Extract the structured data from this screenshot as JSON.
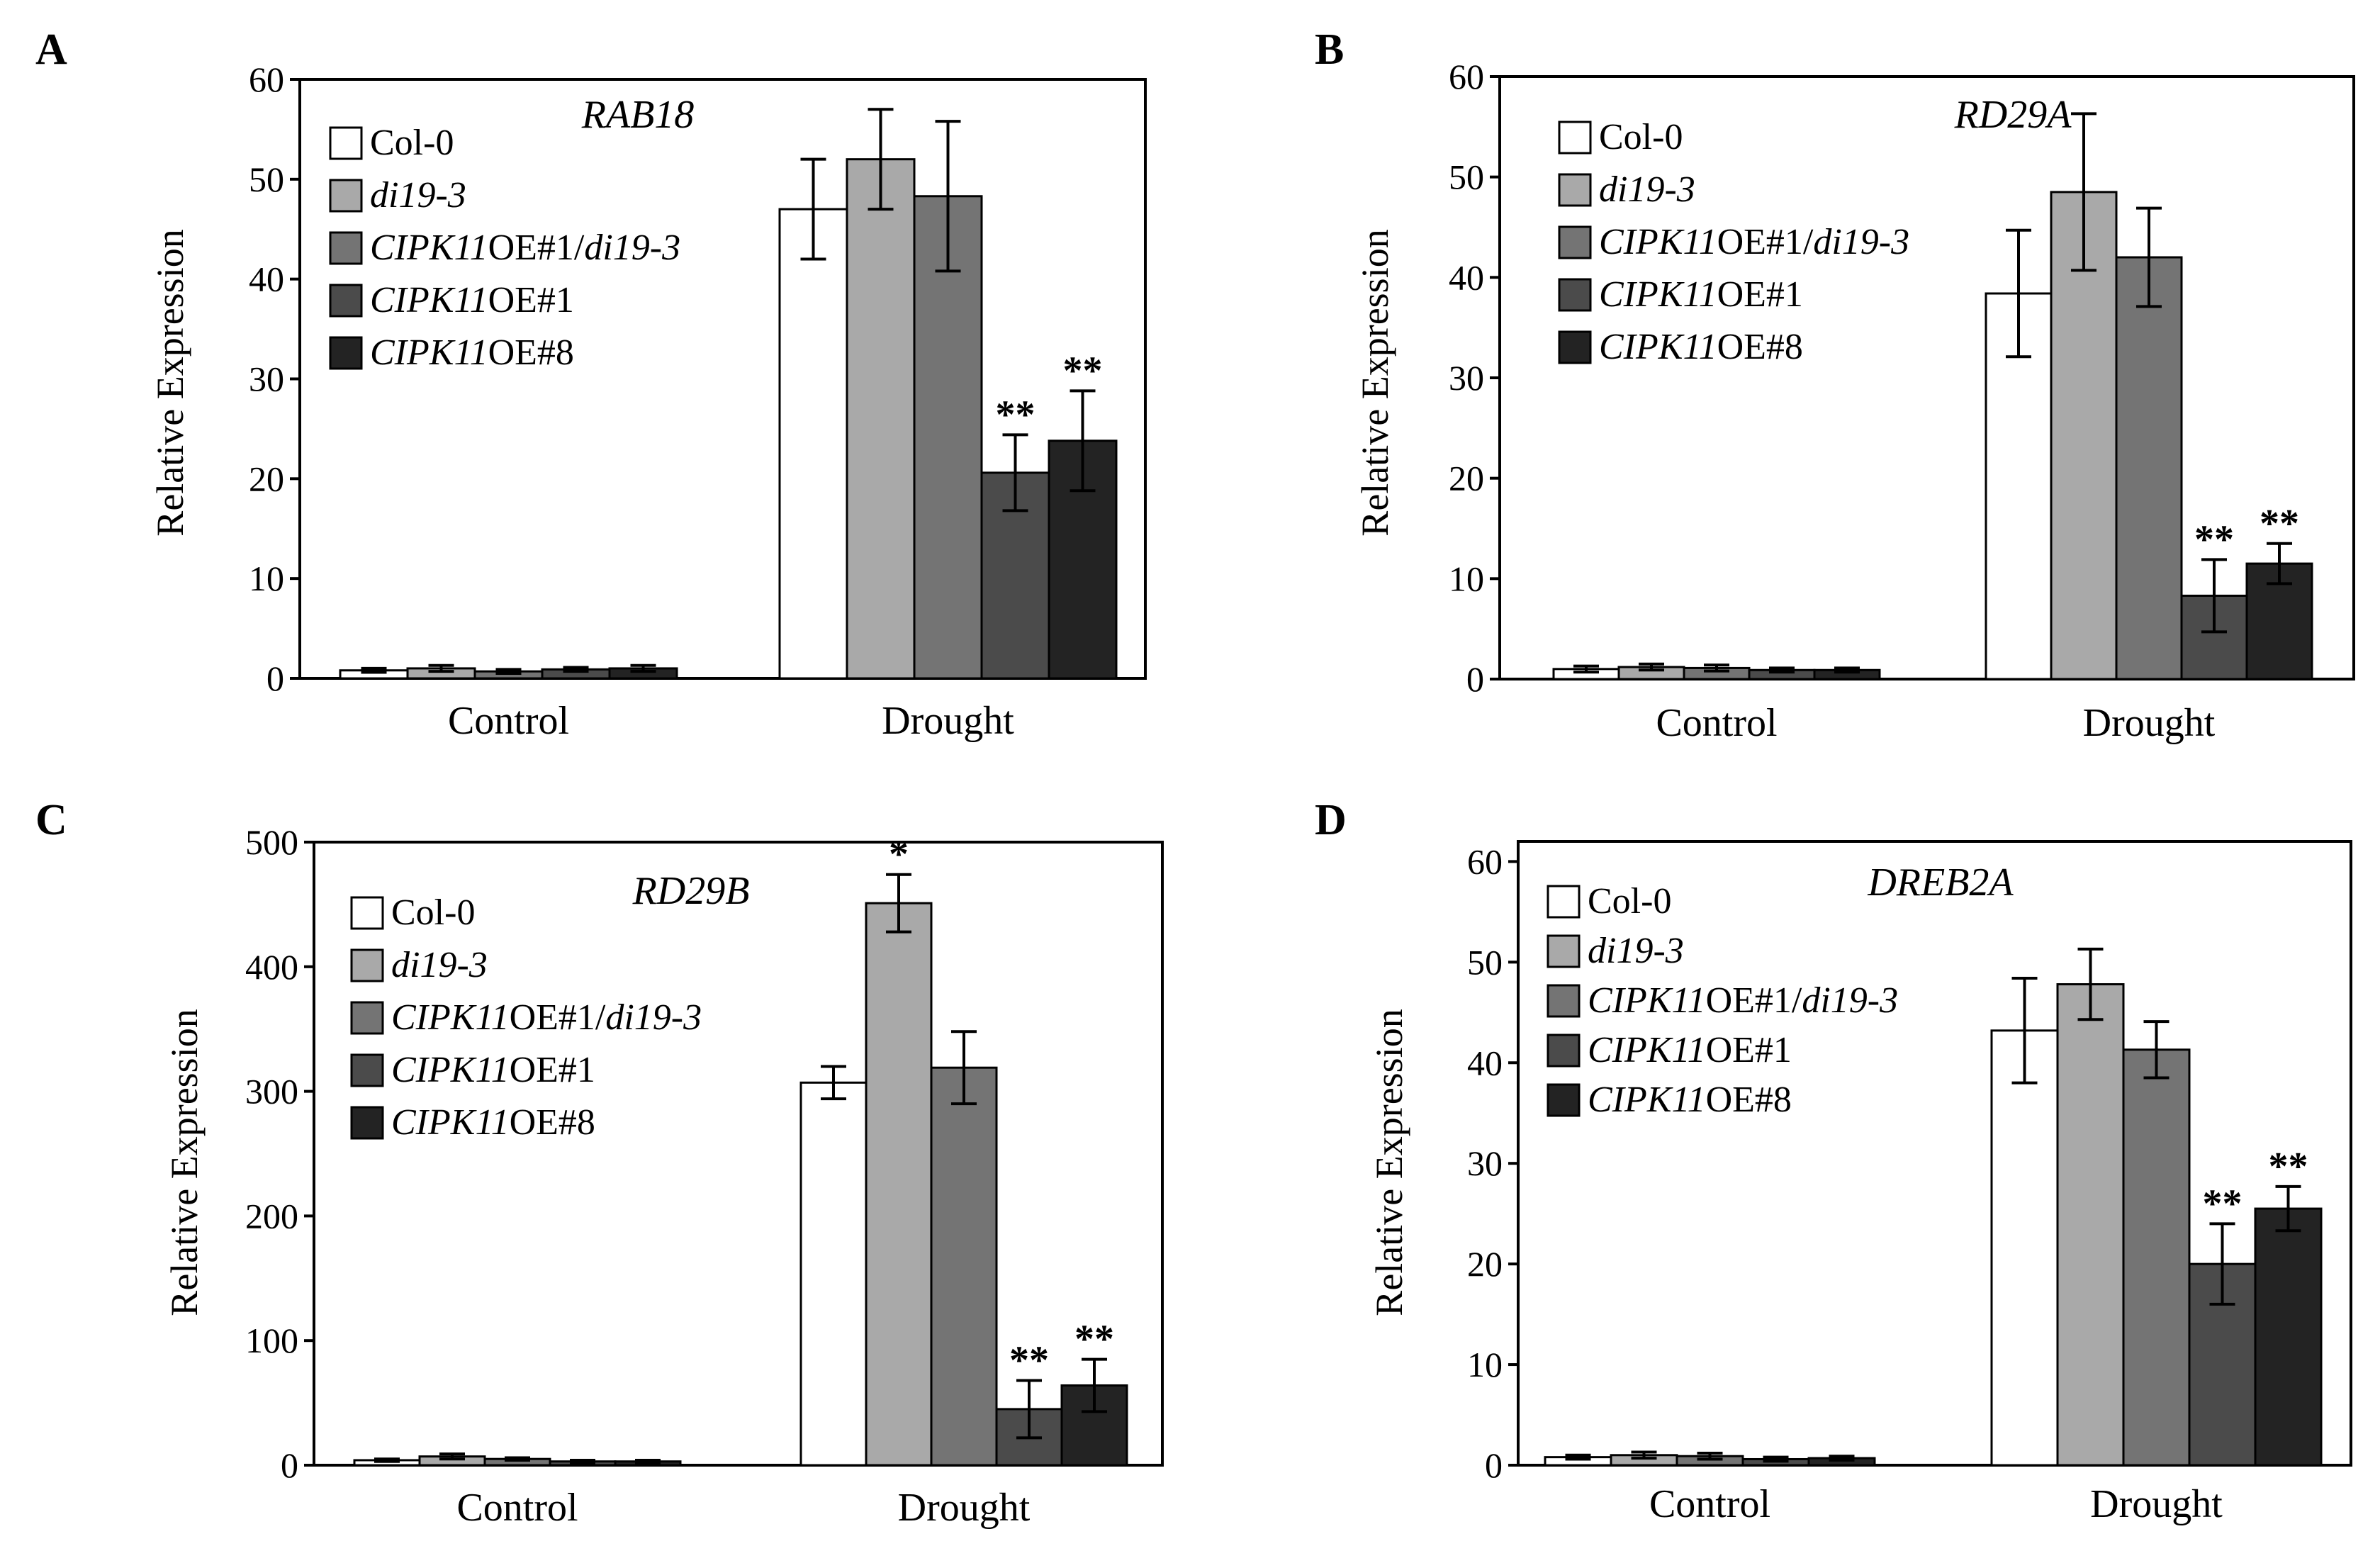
{
  "colors": {
    "Col-0": "#ffffff",
    "di19-3": "#a9a9a9",
    "CIPK11OE#1/di19-3": "#747474",
    "CIPK11OE#1": "#4b4b4b",
    "CIPK11OE#8": "#232323"
  },
  "legend": [
    {
      "key": "Col-0",
      "parts": [
        {
          "t": "Col-0",
          "i": false
        }
      ]
    },
    {
      "key": "di19-3",
      "parts": [
        {
          "t": "di19-3",
          "i": true
        }
      ]
    },
    {
      "key": "CIPK11OE#1/di19-3",
      "parts": [
        {
          "t": "CIPK11",
          "i": true
        },
        {
          "t": "OE#1/",
          "i": false
        },
        {
          "t": "di19-3",
          "i": true
        }
      ]
    },
    {
      "key": "CIPK11OE#1",
      "parts": [
        {
          "t": "CIPK11",
          "i": true
        },
        {
          "t": "OE#1",
          "i": false
        }
      ]
    },
    {
      "key": "CIPK11OE#8",
      "parts": [
        {
          "t": "CIPK11",
          "i": true
        },
        {
          "t": "OE#8",
          "i": false
        }
      ]
    }
  ],
  "chart_data": [
    {
      "panel": "A",
      "type": "bar",
      "title": "RAB18",
      "ylabel": "Relative Expression",
      "xlabel": "",
      "ylim": [
        0,
        60
      ],
      "yticks": [
        0,
        10,
        20,
        30,
        40,
        50,
        60
      ],
      "categories": [
        "Control",
        "Drought"
      ],
      "series": [
        {
          "name": "Col-0",
          "values": [
            0.8,
            47.0
          ],
          "errors": [
            0.2,
            5.0
          ],
          "sig": [
            "",
            ""
          ]
        },
        {
          "name": "di19-3",
          "values": [
            1.0,
            52.0
          ],
          "errors": [
            0.3,
            5.0
          ],
          "sig": [
            "",
            ""
          ]
        },
        {
          "name": "CIPK11OE#1/di19-3",
          "values": [
            0.7,
            48.3
          ],
          "errors": [
            0.2,
            7.5
          ],
          "sig": [
            "",
            ""
          ]
        },
        {
          "name": "CIPK11OE#1",
          "values": [
            0.9,
            20.6
          ],
          "errors": [
            0.2,
            3.8
          ],
          "sig": [
            "",
            "**"
          ]
        },
        {
          "name": "CIPK11OE#8",
          "values": [
            1.0,
            23.8
          ],
          "errors": [
            0.3,
            5.0
          ],
          "sig": [
            "",
            "**"
          ]
        }
      ]
    },
    {
      "panel": "B",
      "type": "bar",
      "title": "RD29A",
      "ylabel": "Relative Expression",
      "xlabel": "",
      "ylim": [
        0,
        60
      ],
      "yticks": [
        0,
        10,
        20,
        30,
        40,
        50,
        60
      ],
      "categories": [
        "Control",
        "Drought"
      ],
      "series": [
        {
          "name": "Col-0",
          "values": [
            1.0,
            38.4
          ],
          "errors": [
            0.3,
            6.3
          ],
          "sig": [
            "",
            ""
          ]
        },
        {
          "name": "di19-3",
          "values": [
            1.2,
            48.5
          ],
          "errors": [
            0.3,
            7.8
          ],
          "sig": [
            "",
            ""
          ]
        },
        {
          "name": "CIPK11OE#1/di19-3",
          "values": [
            1.1,
            42.0
          ],
          "errors": [
            0.3,
            4.9
          ],
          "sig": [
            "",
            ""
          ]
        },
        {
          "name": "CIPK11OE#1",
          "values": [
            0.9,
            8.3
          ],
          "errors": [
            0.2,
            3.6
          ],
          "sig": [
            "",
            "**"
          ]
        },
        {
          "name": "CIPK11OE#8",
          "values": [
            0.9,
            11.5
          ],
          "errors": [
            0.2,
            2.0
          ],
          "sig": [
            "",
            "**"
          ]
        }
      ]
    },
    {
      "panel": "C",
      "type": "bar",
      "title": "RD29B",
      "ylabel": "Relative Expression",
      "xlabel": "",
      "ylim": [
        0,
        500
      ],
      "yticks": [
        0,
        100,
        200,
        300,
        400,
        500
      ],
      "categories": [
        "Control",
        "Drought"
      ],
      "series": [
        {
          "name": "Col-0",
          "values": [
            4,
            307
          ],
          "errors": [
            1,
            13
          ],
          "sig": [
            "",
            ""
          ]
        },
        {
          "name": "di19-3",
          "values": [
            7,
            451
          ],
          "errors": [
            2,
            23
          ],
          "sig": [
            "",
            "*"
          ]
        },
        {
          "name": "CIPK11OE#1/di19-3",
          "values": [
            5,
            319
          ],
          "errors": [
            1,
            29
          ],
          "sig": [
            "",
            ""
          ]
        },
        {
          "name": "CIPK11OE#1",
          "values": [
            3,
            45
          ],
          "errors": [
            1,
            23
          ],
          "sig": [
            "",
            "**"
          ]
        },
        {
          "name": "CIPK11OE#8",
          "values": [
            3,
            64
          ],
          "errors": [
            1,
            21
          ],
          "sig": [
            "",
            "**"
          ]
        }
      ]
    },
    {
      "panel": "D",
      "type": "bar",
      "title": "DREB2A",
      "ylabel": "Relative Expression",
      "xlabel": "",
      "ylim": [
        0,
        62
      ],
      "yticks": [
        0,
        10,
        20,
        30,
        40,
        50,
        60
      ],
      "categories": [
        "Control",
        "Drought"
      ],
      "series": [
        {
          "name": "Col-0",
          "values": [
            0.8,
            43.2
          ],
          "errors": [
            0.2,
            5.2
          ],
          "sig": [
            "",
            ""
          ]
        },
        {
          "name": "di19-3",
          "values": [
            1.0,
            47.8
          ],
          "errors": [
            0.3,
            3.5
          ],
          "sig": [
            "",
            ""
          ]
        },
        {
          "name": "CIPK11OE#1/di19-3",
          "values": [
            0.9,
            41.3
          ],
          "errors": [
            0.3,
            2.8
          ],
          "sig": [
            "",
            ""
          ]
        },
        {
          "name": "CIPK11OE#1",
          "values": [
            0.6,
            20.0
          ],
          "errors": [
            0.2,
            4.0
          ],
          "sig": [
            "",
            "**"
          ]
        },
        {
          "name": "CIPK11OE#8",
          "values": [
            0.7,
            25.5
          ],
          "errors": [
            0.2,
            2.2
          ],
          "sig": [
            "",
            "**"
          ]
        }
      ]
    }
  ]
}
